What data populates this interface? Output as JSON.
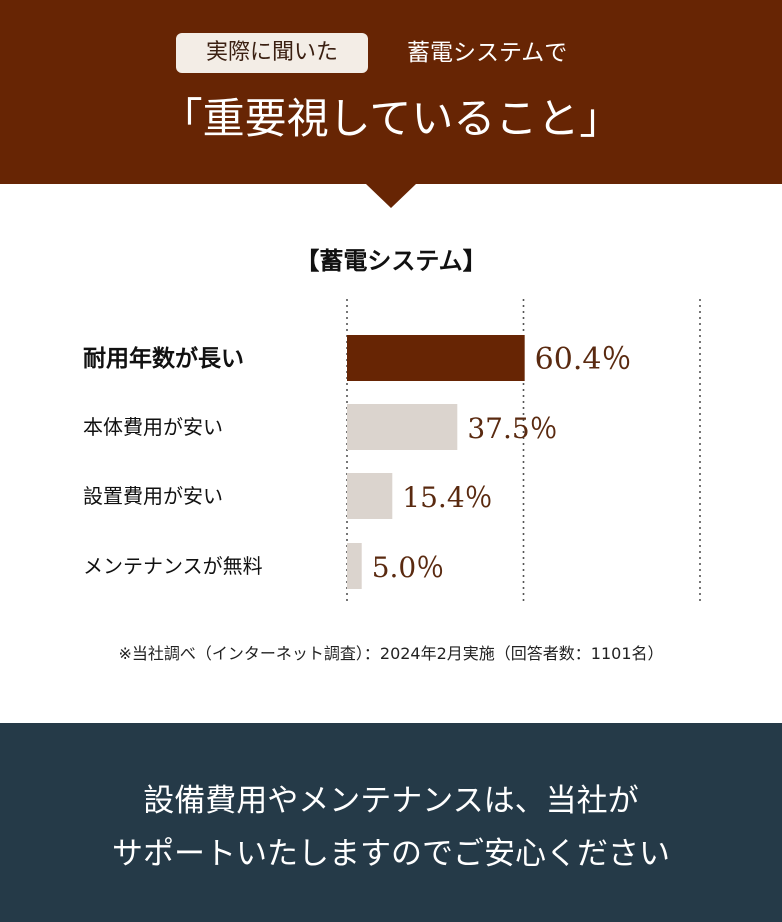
{
  "header": {
    "badge": "実際に聞いた",
    "topic": "蓄電システムで",
    "title": "「重要視していること」"
  },
  "chart_data": {
    "type": "bar",
    "orientation": "horizontal",
    "title": "【蓄電システム】",
    "categories": [
      "耐用年数が長い",
      "本体費用が安い",
      "設置費用が安い",
      "メンテナンスが無料"
    ],
    "values": [
      60.4,
      37.5,
      15.4,
      5.0
    ],
    "value_labels": [
      "60.4％",
      "37.5％",
      "15.4％",
      "5.0％"
    ],
    "highlight_index": 0,
    "xlim": [
      0,
      120
    ],
    "gridlines": [
      0,
      60,
      120
    ],
    "grid": "dotted-vertical",
    "colors": {
      "highlight_bar": "#672504",
      "bar": "#dbd4ce",
      "value_text": "#5a2a10",
      "category_text": "#111111"
    }
  },
  "note": "※当社調べ（インターネット調査）：2024年2月実施（回答者数：1101名）",
  "footer": {
    "line1": "設備費用やメンテナンスは、当社が",
    "line2": "サポートいたしますのでご安心ください"
  },
  "colors": {
    "header_bg": "#672504",
    "footer_bg": "#253a48",
    "badge_bg": "#f3ede6"
  }
}
